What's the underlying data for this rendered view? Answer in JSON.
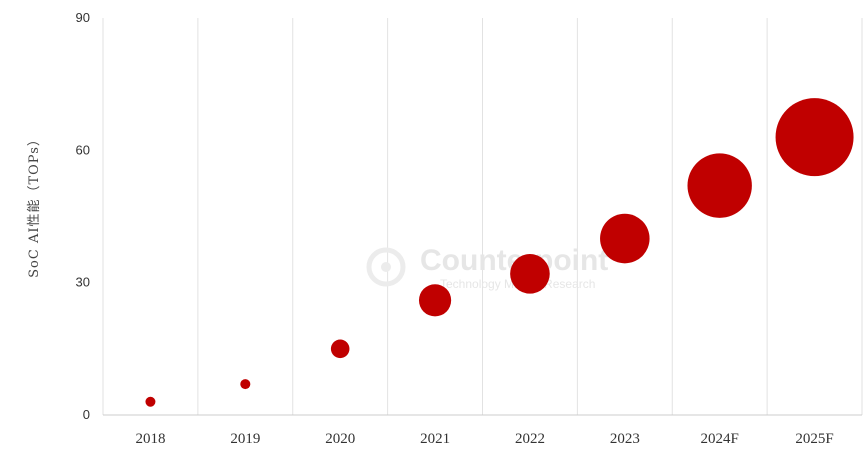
{
  "chart_data": {
    "type": "scatter",
    "title": "",
    "xlabel": "",
    "ylabel": "SoC AI性能（TOPs）",
    "categories": [
      "2018",
      "2019",
      "2020",
      "2021",
      "2022",
      "2023",
      "2024F",
      "2025F"
    ],
    "series": [
      {
        "values": [
          3,
          7,
          15,
          26,
          32,
          40,
          52,
          63
        ]
      }
    ],
    "ylim": [
      0,
      90
    ],
    "yticks": [
      "0",
      "30",
      "60",
      "90"
    ],
    "grid": "vertical",
    "marker_color": "#c00000",
    "bubble_size": "proportional to value"
  },
  "watermark": {
    "text": "Counterpoint",
    "subtext": "Technology Market Research"
  }
}
